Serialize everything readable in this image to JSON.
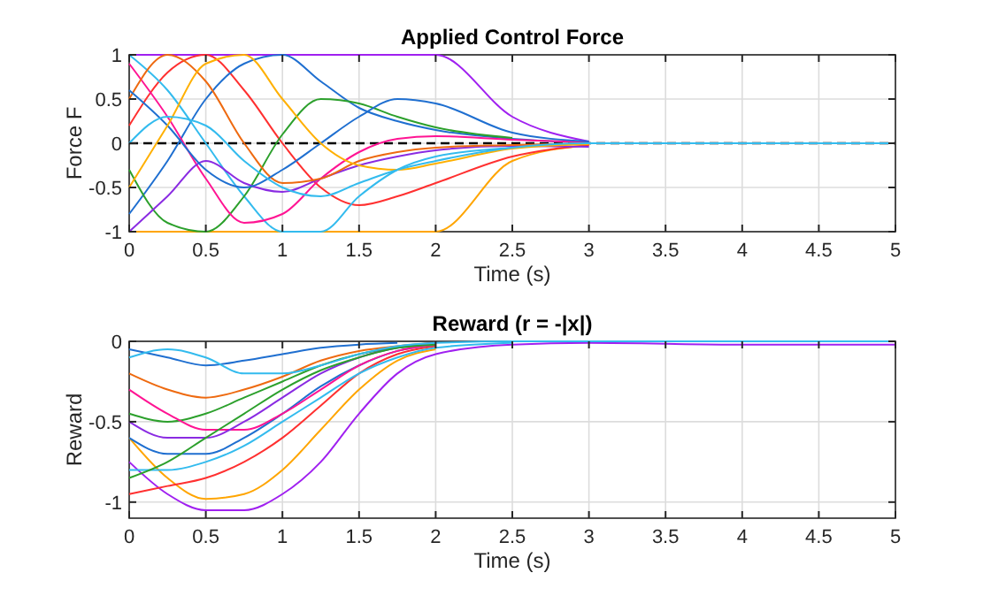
{
  "chart_data": [
    {
      "type": "line",
      "title": "Applied Control Force",
      "xlabel": "Time (s)",
      "ylabel": "Force F",
      "xlim": [
        0,
        5
      ],
      "xticks": [
        0,
        0.5,
        1,
        1.5,
        2,
        2.5,
        3,
        3.5,
        4,
        4.5,
        5
      ],
      "ylim": [
        -1,
        1
      ],
      "yticks": [
        -1,
        -0.5,
        0,
        0.5,
        1
      ],
      "grid": true,
      "marker": "none",
      "line_style": "solid",
      "ref_lines": [
        {
          "axis": "y",
          "value": 0,
          "color": "#000000",
          "line_style": "dashed"
        }
      ],
      "x": [
        0,
        0.25,
        0.5,
        0.75,
        1,
        1.25,
        1.5,
        1.75,
        2,
        2.5,
        3,
        4,
        5
      ],
      "series": [
        {
          "color": "#a020f0",
          "values": [
            1,
            1,
            1,
            1,
            1,
            1,
            1,
            1,
            1,
            0.3,
            0.02,
            null,
            null
          ]
        },
        {
          "color": "#ffa500",
          "values": [
            -1,
            -1,
            -1,
            -1,
            -1,
            -1,
            -1,
            -1,
            -1,
            -0.2,
            -0.02,
            null,
            null
          ]
        },
        {
          "color": "#ff3030",
          "values": [
            0.2,
            0.8,
            1,
            0.6,
            0,
            -0.5,
            -0.7,
            -0.6,
            -0.45,
            -0.15,
            -0.02,
            null,
            null
          ]
        },
        {
          "color": "#1f6fd0",
          "values": [
            -0.8,
            -0.2,
            0.5,
            0.9,
            1,
            0.7,
            0.4,
            0.25,
            0.15,
            0.05,
            0.01,
            null,
            null
          ]
        },
        {
          "color": "#33bbee",
          "values": [
            1,
            0.6,
            0,
            -0.6,
            -1,
            -1,
            -0.6,
            -0.3,
            -0.15,
            -0.05,
            0,
            null,
            null
          ]
        },
        {
          "color": "#2ca02c",
          "values": [
            -0.3,
            -0.9,
            -1,
            -0.6,
            0.1,
            0.5,
            0.45,
            0.3,
            0.18,
            0.06,
            null,
            null,
            null
          ]
        },
        {
          "color": "#ff1493",
          "values": [
            0.9,
            0.3,
            -0.4,
            -0.9,
            -0.8,
            -0.4,
            -0.1,
            0.05,
            0.08,
            0.04,
            0.01,
            null,
            null
          ]
        },
        {
          "color": "#8a2be2",
          "values": [
            -1,
            -0.6,
            -0.2,
            -0.45,
            -0.55,
            -0.4,
            -0.25,
            -0.15,
            -0.08,
            -0.03,
            -0.04,
            null,
            null
          ]
        },
        {
          "color": "#ee6a10",
          "values": [
            0.5,
            1,
            0.7,
            0,
            -0.45,
            -0.4,
            -0.2,
            -0.1,
            -0.05,
            -0.02,
            0,
            null,
            null
          ]
        },
        {
          "color": "#1f6fd0",
          "values": [
            0.6,
            0.2,
            -0.3,
            -0.5,
            -0.3,
            0,
            0.3,
            0.5,
            0.45,
            0.12,
            0.02,
            null,
            null
          ]
        },
        {
          "color": "#ffb000",
          "values": [
            -0.5,
            0.2,
            0.9,
            1,
            0.5,
            0,
            -0.25,
            -0.3,
            -0.23,
            -0.06,
            -0.01,
            null,
            null
          ]
        },
        {
          "color": "#33bbee",
          "values": [
            0,
            0.3,
            0.2,
            -0.2,
            -0.5,
            -0.6,
            -0.45,
            -0.3,
            -0.2,
            -0.05,
            0,
            0,
            0
          ]
        }
      ]
    },
    {
      "type": "line",
      "title": "Reward (r = -|x|)",
      "xlabel": "Time (s)",
      "ylabel": "Reward",
      "xlim": [
        0,
        5
      ],
      "xticks": [
        0,
        0.5,
        1,
        1.5,
        2,
        2.5,
        3,
        3.5,
        4,
        4.5,
        5
      ],
      "ylim": [
        -1.1,
        0
      ],
      "yticks": [
        -1,
        -0.5,
        0
      ],
      "grid": true,
      "marker": "none",
      "line_style": "solid",
      "x": [
        0,
        0.25,
        0.5,
        0.75,
        1,
        1.25,
        1.5,
        1.75,
        2,
        2.5,
        3,
        4,
        5
      ],
      "series": [
        {
          "color": "#a020f0",
          "values": [
            -0.75,
            -0.95,
            -1.05,
            -1.05,
            -0.95,
            -0.75,
            -0.45,
            -0.2,
            -0.08,
            -0.02,
            -0.01,
            -0.02,
            -0.02
          ]
        },
        {
          "color": "#ffa500",
          "values": [
            -0.6,
            -0.85,
            -0.98,
            -0.95,
            -0.8,
            -0.55,
            -0.3,
            -0.12,
            -0.05,
            null,
            null,
            null,
            null
          ]
        },
        {
          "color": "#ff3030",
          "values": [
            -0.95,
            -0.9,
            -0.85,
            -0.75,
            -0.6,
            -0.4,
            -0.2,
            -0.08,
            -0.03,
            null,
            null,
            null,
            null
          ]
        },
        {
          "color": "#1f6fd0",
          "values": [
            -0.6,
            -0.7,
            -0.7,
            -0.6,
            -0.45,
            -0.28,
            -0.15,
            -0.06,
            -0.02,
            null,
            null,
            null,
            null
          ]
        },
        {
          "color": "#33bbee",
          "values": [
            -0.8,
            -0.8,
            -0.75,
            -0.65,
            -0.5,
            -0.35,
            -0.2,
            -0.1,
            -0.04,
            -0.01,
            null,
            null,
            null
          ]
        },
        {
          "color": "#2ca02c",
          "values": [
            -0.45,
            -0.5,
            -0.45,
            -0.35,
            -0.25,
            -0.15,
            -0.08,
            -0.04,
            -0.02,
            null,
            null,
            null,
            null
          ]
        },
        {
          "color": "#ff1493",
          "values": [
            -0.3,
            -0.45,
            -0.55,
            -0.55,
            -0.45,
            -0.3,
            -0.15,
            -0.06,
            -0.02,
            null,
            null,
            null,
            null
          ]
        },
        {
          "color": "#ee6a10",
          "values": [
            -0.2,
            -0.3,
            -0.35,
            -0.3,
            -0.22,
            -0.12,
            -0.06,
            -0.03,
            -0.01,
            null,
            null,
            null,
            null
          ]
        },
        {
          "color": "#8a2be2",
          "values": [
            -0.5,
            -0.6,
            -0.6,
            -0.5,
            -0.35,
            -0.2,
            -0.1,
            -0.04,
            -0.01,
            null,
            null,
            null,
            null
          ]
        },
        {
          "color": "#1f6fd0",
          "values": [
            -0.05,
            -0.1,
            -0.15,
            -0.12,
            -0.08,
            -0.04,
            -0.02,
            -0.01,
            null,
            null,
            null,
            null,
            null
          ]
        },
        {
          "color": "#2ca02c",
          "values": [
            -0.85,
            -0.75,
            -0.6,
            -0.45,
            -0.3,
            -0.18,
            -0.1,
            -0.04,
            -0.02,
            null,
            null,
            null,
            null
          ]
        },
        {
          "color": "#33bbee",
          "values": [
            -0.1,
            -0.05,
            -0.1,
            -0.2,
            -0.2,
            -0.15,
            -0.08,
            -0.03,
            -0.01,
            0,
            0,
            0,
            0
          ]
        }
      ]
    }
  ]
}
